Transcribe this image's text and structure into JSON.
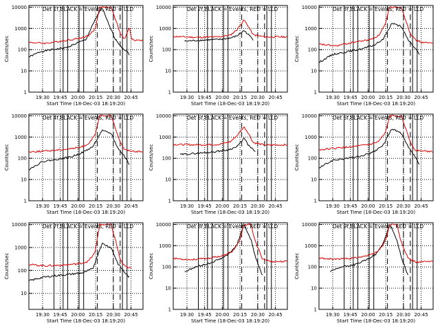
{
  "chart_data": [
    {
      "panel": "1",
      "type": "line",
      "title": "Det 1f,BLACK = Events, RED = LLD",
      "xlabel": "Start Time (18-Dec-03 18:19:20)",
      "ylabel": "Counts/sec",
      "xticks": [
        "19:30",
        "19:45",
        "20:00",
        "20:15",
        "20:30",
        "20:45"
      ],
      "yticks": [
        "1",
        "10",
        "100",
        "1000",
        "10000"
      ],
      "ylim": [
        1,
        12000
      ],
      "series": [
        {
          "name": "Events",
          "x": [
            0,
            0.1,
            0.2,
            0.32,
            0.42,
            0.5,
            0.56,
            0.64,
            0.7,
            0.76,
            0.82,
            0.86,
            0.88
          ],
          "values": [
            45,
            80,
            100,
            120,
            200,
            300,
            1500,
            10000,
            1500,
            300,
            120,
            80,
            60
          ]
        },
        {
          "name": "LLD",
          "x": [
            0,
            0.15,
            0.3,
            0.45,
            0.52,
            0.58,
            0.62,
            0.72,
            0.76,
            0.8,
            0.84,
            0.88,
            0.9,
            0.95,
            1.0
          ],
          "values": [
            220,
            200,
            260,
            350,
            450,
            900,
            10000,
            10000,
            2500,
            600,
            300,
            1200,
            300,
            280,
            270
          ]
        }
      ]
    },
    {
      "panel": "2",
      "type": "line",
      "title": "Det 2f,BLACK = Events, RED = LLD",
      "xlabel": "Start Time (18-Dec-03 18:19:20)",
      "ylabel": "Counts/sec",
      "xticks": [
        "19:30",
        "19:45",
        "20:00",
        "20:15",
        "20:30",
        "20:45"
      ],
      "yticks": [
        "1",
        "10",
        "100",
        "1000",
        "10000"
      ],
      "ylim": [
        1,
        12000
      ],
      "series": [
        {
          "name": "Events",
          "x": [
            0.1,
            0.25,
            0.4,
            0.5,
            0.56,
            0.62,
            0.66,
            0.7
          ],
          "values": [
            250,
            280,
            300,
            350,
            450,
            800,
            500,
            300
          ]
        },
        {
          "name": "LLD",
          "x": [
            0,
            0.2,
            0.4,
            0.5,
            0.56,
            0.62,
            0.66,
            0.7,
            0.8,
            1.0
          ],
          "values": [
            420,
            380,
            400,
            480,
            900,
            2500,
            1200,
            500,
            400,
            400
          ]
        }
      ]
    },
    {
      "panel": "3",
      "type": "line",
      "title": "Det 3f,BLACK = Events, RED = LLD",
      "xlabel": "Start Time (18-Dec-03 18:19:20)",
      "ylabel": "Counts/sec",
      "xticks": [
        "19:30",
        "19:45",
        "20:00",
        "20:15",
        "20:30",
        "20:45"
      ],
      "yticks": [
        "1",
        "10",
        "100",
        "1000",
        "10000"
      ],
      "ylim": [
        1,
        12000
      ],
      "series": [
        {
          "name": "Events",
          "x": [
            0,
            0.12,
            0.25,
            0.38,
            0.48,
            0.56,
            0.64,
            0.72,
            0.78,
            0.84,
            0.88
          ],
          "values": [
            25,
            60,
            80,
            110,
            160,
            300,
            1800,
            1200,
            300,
            120,
            60
          ]
        },
        {
          "name": "LLD",
          "x": [
            0,
            0.15,
            0.3,
            0.45,
            0.52,
            0.58,
            0.62,
            0.72,
            0.76,
            0.8,
            0.84,
            0.9,
            1.0
          ],
          "values": [
            180,
            150,
            220,
            300,
            450,
            1500,
            10000,
            10000,
            2500,
            600,
            300,
            220,
            200
          ]
        }
      ]
    },
    {
      "panel": "4",
      "type": "line",
      "title": "Det 4f,BLACK = Events, RED = LLD",
      "xlabel": "Start Time (18-Dec-03 18:19:20)",
      "ylabel": "Counts/sec",
      "xticks": [
        "19:30",
        "19:45",
        "20:00",
        "20:15",
        "20:30",
        "20:45"
      ],
      "yticks": [
        "1",
        "10",
        "100",
        "1000",
        "10000"
      ],
      "ylim": [
        1,
        12000
      ],
      "series": [
        {
          "name": "Events",
          "x": [
            0,
            0.12,
            0.25,
            0.38,
            0.48,
            0.56,
            0.64,
            0.72,
            0.78,
            0.84,
            0.88
          ],
          "values": [
            30,
            70,
            90,
            120,
            200,
            350,
            2000,
            1500,
            300,
            120,
            50
          ]
        },
        {
          "name": "LLD",
          "x": [
            0,
            0.15,
            0.3,
            0.45,
            0.52,
            0.58,
            0.62,
            0.72,
            0.76,
            0.8,
            0.84,
            0.9,
            1.0
          ],
          "values": [
            200,
            220,
            260,
            320,
            480,
            1200,
            10000,
            10000,
            2500,
            600,
            250,
            220,
            200
          ]
        }
      ]
    },
    {
      "panel": "5",
      "type": "line",
      "title": "Det 5f,BLACK = Events, RED = LLD",
      "xlabel": "Start Time (18-Dec-03 18:19:20)",
      "ylabel": "Counts/sec",
      "xticks": [
        "19:30",
        "19:45",
        "20:00",
        "20:15",
        "20:30",
        "20:45"
      ],
      "yticks": [
        "1",
        "10",
        "100",
        "1000",
        "10000"
      ],
      "ylim": [
        1,
        12000
      ],
      "series": [
        {
          "name": "Events",
          "x": [
            0.06,
            0.2,
            0.35,
            0.48,
            0.56,
            0.62,
            0.66,
            0.72
          ],
          "values": [
            150,
            170,
            200,
            250,
            350,
            900,
            400,
            200
          ]
        },
        {
          "name": "LLD",
          "x": [
            0,
            0.2,
            0.4,
            0.5,
            0.56,
            0.62,
            0.66,
            0.7,
            0.8,
            1.0
          ],
          "values": [
            450,
            430,
            450,
            600,
            1200,
            3000,
            1500,
            550,
            420,
            430
          ]
        }
      ]
    },
    {
      "panel": "6",
      "type": "line",
      "title": "Det 6f,BLACK = Events, RED = LLD",
      "xlabel": "Start Time (18-Dec-03 18:19:20)",
      "ylabel": "Counts/sec",
      "xticks": [
        "19:30",
        "19:45",
        "20:00",
        "20:15",
        "20:30",
        "20:45"
      ],
      "yticks": [
        "1",
        "10",
        "100",
        "1000",
        "10000"
      ],
      "ylim": [
        1,
        12000
      ],
      "series": [
        {
          "name": "Events",
          "x": [
            0,
            0.12,
            0.25,
            0.38,
            0.48,
            0.56,
            0.64,
            0.72,
            0.78,
            0.84,
            0.88
          ],
          "values": [
            35,
            80,
            100,
            130,
            200,
            400,
            2500,
            1500,
            350,
            120,
            50
          ]
        },
        {
          "name": "LLD",
          "x": [
            0,
            0.15,
            0.3,
            0.45,
            0.52,
            0.58,
            0.62,
            0.72,
            0.76,
            0.8,
            0.84,
            0.9,
            1.0
          ],
          "values": [
            250,
            300,
            350,
            450,
            600,
            1500,
            10000,
            10000,
            2500,
            600,
            250,
            220,
            210
          ]
        }
      ]
    },
    {
      "panel": "7",
      "type": "line",
      "title": "Det 7f,BLACK = Events, RED = LLD",
      "xlabel": "Start Time (18-Dec-03 18:19:20)",
      "ylabel": "Counts/sec",
      "xticks": [
        "19:30",
        "19:45",
        "20:00",
        "20:15",
        "20:30",
        "20:45"
      ],
      "yticks": [
        "10",
        "100",
        "1000",
        "10000"
      ],
      "ylim": [
        2,
        12000
      ],
      "series": [
        {
          "name": "Events",
          "x": [
            0,
            0.12,
            0.25,
            0.38,
            0.48,
            0.56,
            0.64,
            0.72,
            0.78,
            0.84,
            0.88
          ],
          "values": [
            35,
            50,
            60,
            70,
            80,
            120,
            1500,
            1000,
            200,
            80,
            50
          ]
        },
        {
          "name": "LLD",
          "x": [
            0,
            0.15,
            0.3,
            0.45,
            0.52,
            0.58,
            0.62,
            0.72,
            0.76,
            0.8,
            0.84,
            0.9
          ],
          "values": [
            180,
            160,
            170,
            200,
            250,
            600,
            10000,
            10000,
            2000,
            300,
            150,
            120
          ]
        }
      ]
    },
    {
      "panel": "8",
      "type": "line",
      "title": "Det 8f,BLACK = Events, RED = LLD",
      "xlabel": "Start Time (18-Dec-03 18:19:20)",
      "ylabel": "Counts/sec",
      "xticks": [
        "19:30",
        "19:45",
        "20:00",
        "20:15",
        "20:30",
        "20:45"
      ],
      "yticks": [
        "1",
        "10",
        "100",
        "1000",
        "10000"
      ],
      "ylim": [
        1,
        12000
      ],
      "series": [
        {
          "name": "Events",
          "x": [
            0.1,
            0.2,
            0.32,
            0.42,
            0.5,
            0.56,
            0.62,
            0.68,
            0.72,
            0.78
          ],
          "values": [
            60,
            100,
            150,
            250,
            450,
            1200,
            10000,
            2000,
            300,
            40
          ]
        },
        {
          "name": "LLD",
          "x": [
            0,
            0.15,
            0.3,
            0.45,
            0.52,
            0.58,
            0.62,
            0.68,
            0.72,
            0.78,
            0.85,
            1.0
          ],
          "values": [
            250,
            220,
            250,
            350,
            550,
            1500,
            10000,
            10000,
            1500,
            250,
            180,
            180
          ]
        }
      ]
    },
    {
      "panel": "9",
      "type": "line",
      "title": "Det 9f,BLACK = Events, RED = LLD",
      "xlabel": "Start Time (18-Dec-03 18:19:20)",
      "ylabel": "Counts/sec",
      "xticks": [
        "19:30",
        "19:45",
        "20:00",
        "20:15",
        "20:30",
        "20:45"
      ],
      "yticks": [
        "1",
        "10",
        "100",
        "1000",
        "10000"
      ],
      "ylim": [
        1,
        12000
      ],
      "series": [
        {
          "name": "Events",
          "x": [
            0.1,
            0.2,
            0.32,
            0.42,
            0.5,
            0.56,
            0.62,
            0.68,
            0.72,
            0.78
          ],
          "values": [
            60,
            100,
            130,
            220,
            400,
            1200,
            10000,
            2000,
            300,
            40
          ]
        },
        {
          "name": "LLD",
          "x": [
            0,
            0.15,
            0.3,
            0.45,
            0.52,
            0.58,
            0.62,
            0.68,
            0.72,
            0.78,
            0.85,
            1.0
          ],
          "values": [
            260,
            230,
            260,
            360,
            560,
            1600,
            10000,
            10000,
            1500,
            250,
            170,
            180
          ]
        }
      ]
    }
  ]
}
